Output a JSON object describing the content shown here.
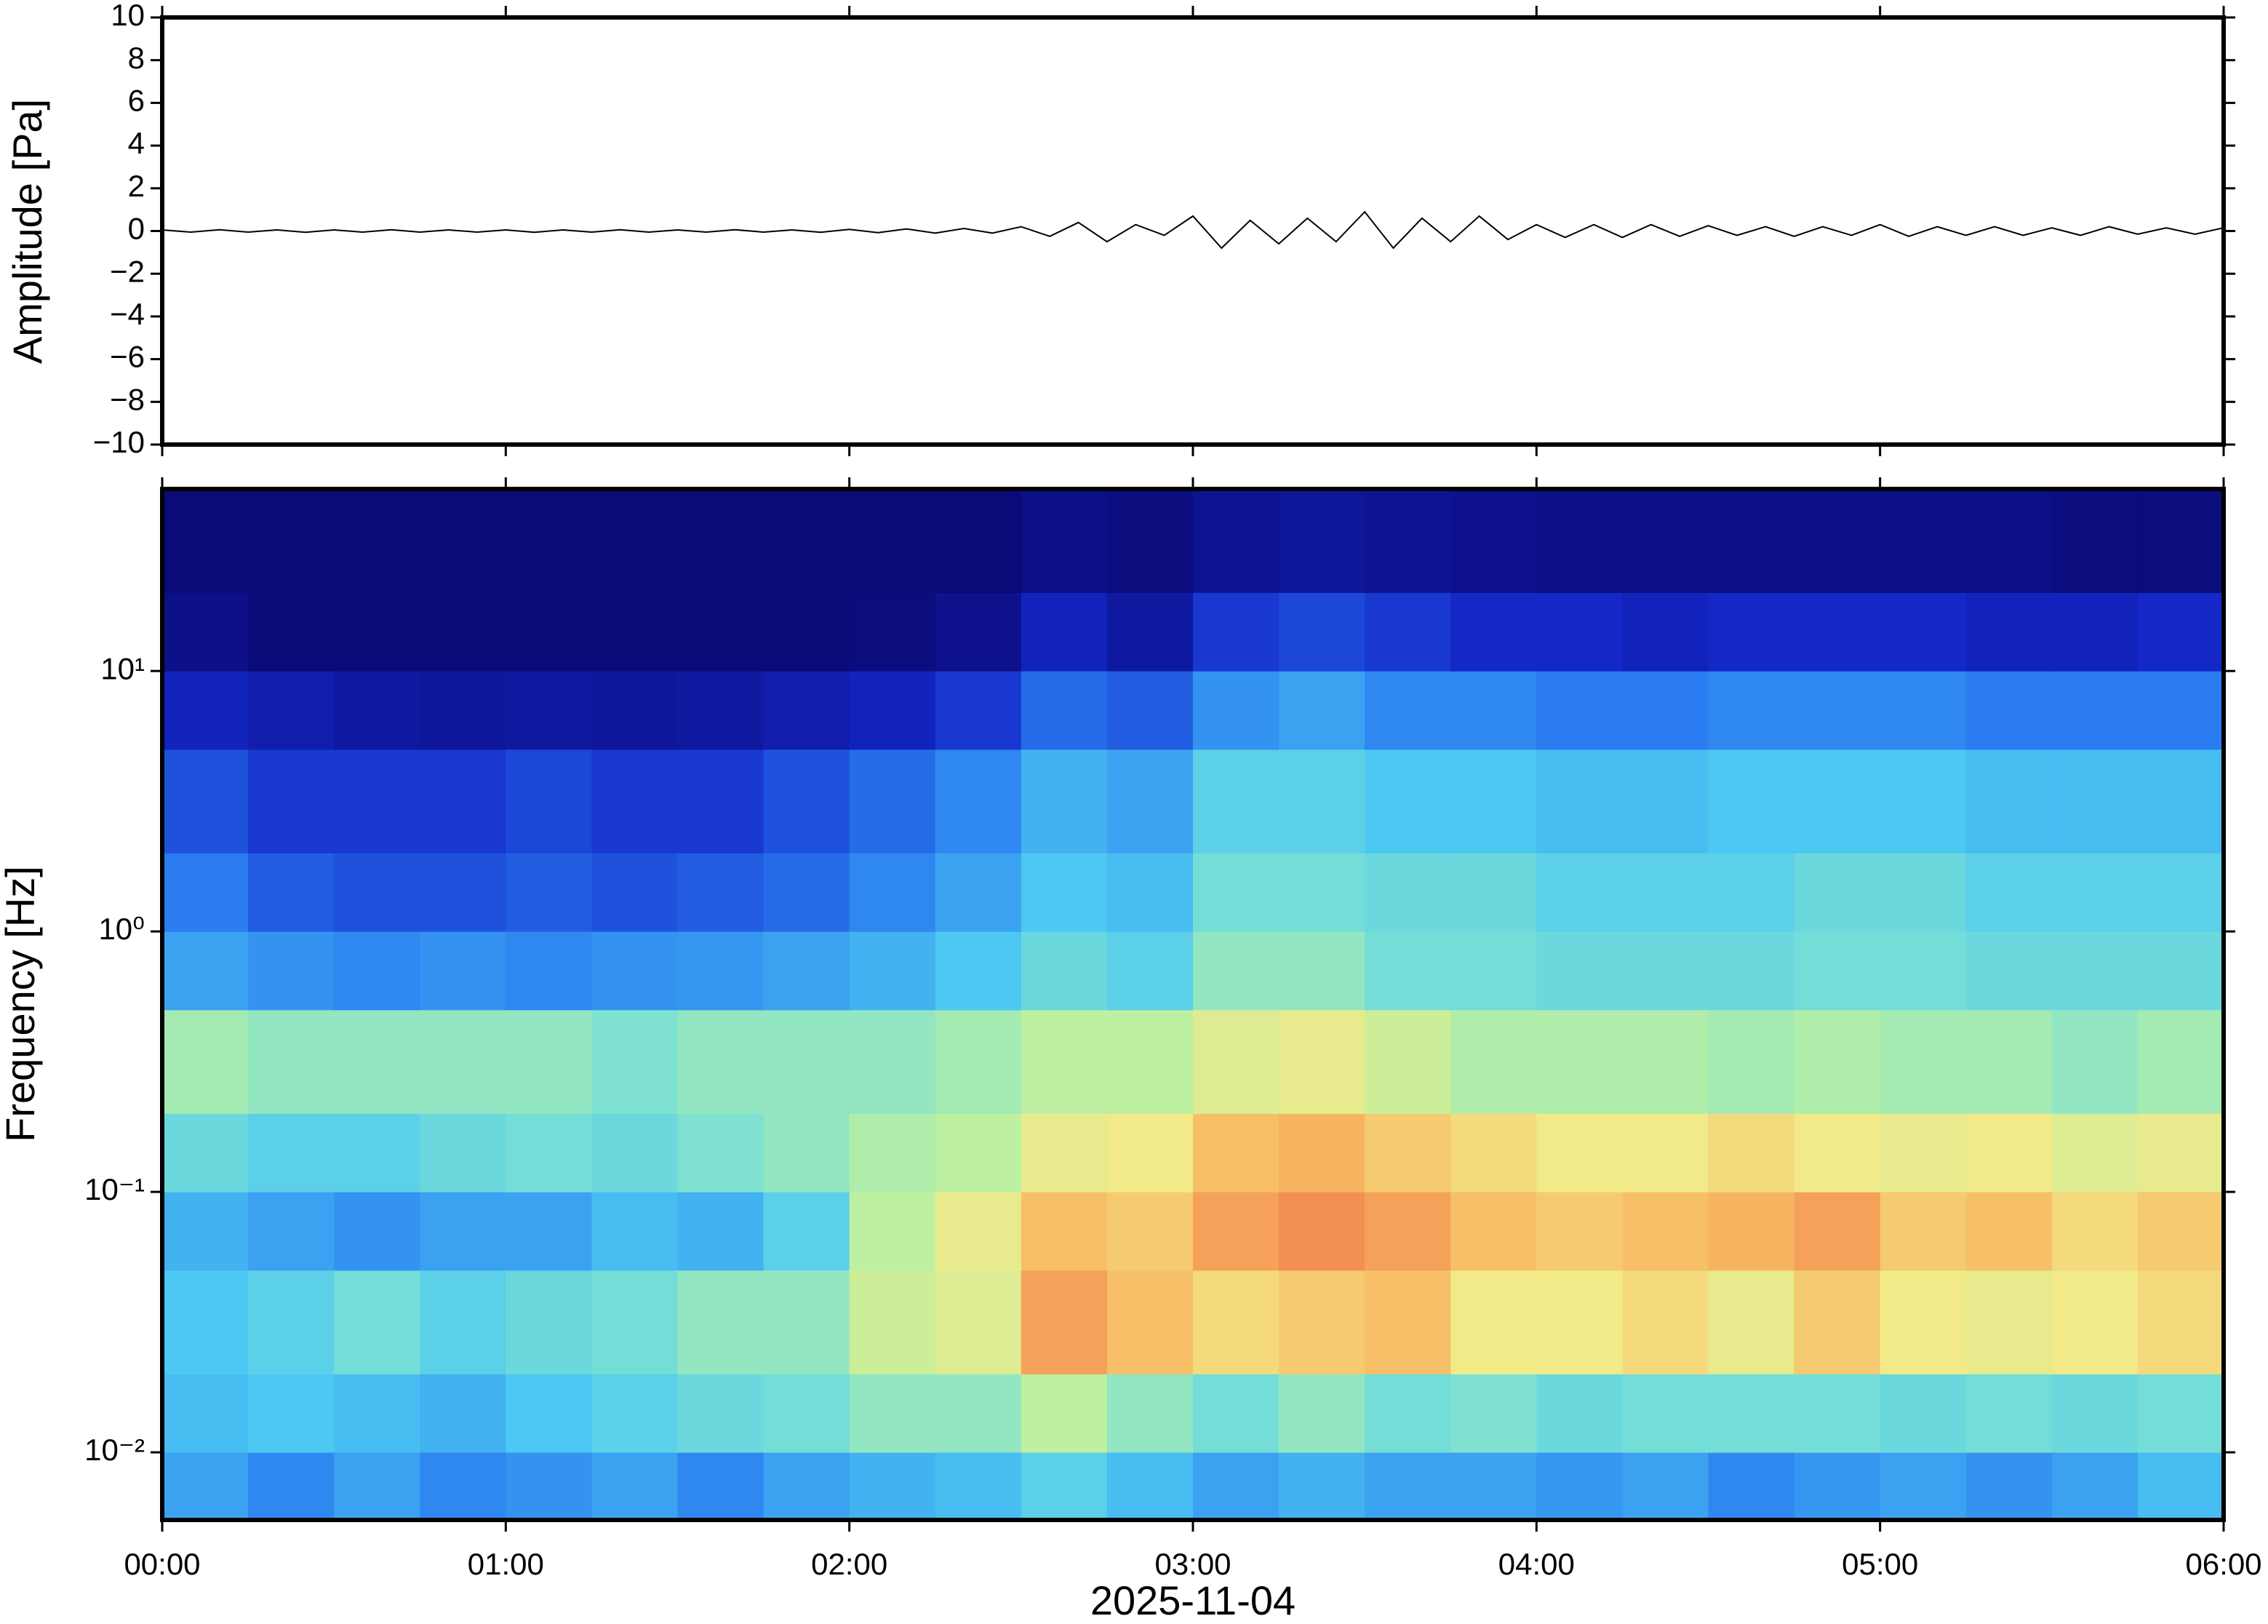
{
  "chart_data": [
    {
      "type": "line",
      "ylabel": "Amplitude [Pa]",
      "x": [
        0,
        5,
        10,
        15,
        20,
        25,
        30,
        35,
        40,
        45,
        50,
        55,
        60,
        65,
        70,
        75,
        80,
        85,
        90,
        95,
        100,
        105,
        110,
        115,
        120,
        125,
        130,
        135,
        140,
        145,
        150,
        155,
        160,
        165,
        170,
        175,
        180,
        185,
        190,
        195,
        200,
        205,
        210,
        215,
        220,
        225,
        230,
        235,
        240,
        245,
        250,
        255,
        260,
        265,
        270,
        275,
        280,
        285,
        290,
        295,
        300,
        305,
        310,
        315,
        320,
        325,
        330,
        335,
        340,
        345,
        350,
        355,
        360
      ],
      "values": [
        0.05,
        -0.05,
        0.06,
        -0.05,
        0.05,
        -0.06,
        0.05,
        -0.05,
        0.06,
        -0.05,
        0.05,
        -0.05,
        0.05,
        -0.06,
        0.05,
        -0.05,
        0.06,
        -0.05,
        0.05,
        -0.05,
        0.06,
        -0.05,
        0.05,
        -0.06,
        0.08,
        -0.08,
        0.1,
        -0.1,
        0.12,
        -0.1,
        0.2,
        -0.25,
        0.4,
        -0.5,
        0.3,
        -0.2,
        0.7,
        -0.8,
        0.5,
        -0.6,
        0.6,
        -0.5,
        0.9,
        -0.8,
        0.6,
        -0.5,
        0.7,
        -0.4,
        0.3,
        -0.3,
        0.3,
        -0.3,
        0.3,
        -0.25,
        0.25,
        -0.2,
        0.2,
        -0.25,
        0.2,
        -0.2,
        0.3,
        -0.25,
        0.2,
        -0.2,
        0.2,
        -0.2,
        0.15,
        -0.2,
        0.2,
        -0.15,
        0.15,
        -0.15,
        0.15
      ],
      "color": "#000000",
      "xlim": [
        0,
        360
      ],
      "xticks": [
        0,
        60,
        120,
        180,
        240,
        300,
        360
      ],
      "ylim": [
        -10,
        10
      ],
      "yticks": [
        {
          "value": -10,
          "label": "−10"
        },
        {
          "value": -8,
          "label": "−8"
        },
        {
          "value": -6,
          "label": "−6"
        },
        {
          "value": -4,
          "label": "−4"
        },
        {
          "value": -2,
          "label": "−2"
        },
        0,
        2,
        4,
        6,
        8,
        10
      ]
    },
    {
      "type": "heatmap",
      "ylabel": "Frequency [Hz]",
      "xlabel": "2025-11-04",
      "yscale": "log",
      "colormap": "jet",
      "xlim": [
        0,
        360
      ],
      "xticks": [
        {
          "value": 0,
          "label": "00:00"
        },
        {
          "value": 60,
          "label": "01:00"
        },
        {
          "value": 120,
          "label": "02:00"
        },
        {
          "value": 180,
          "label": "03:00"
        },
        {
          "value": 240,
          "label": "04:00"
        },
        {
          "value": 300,
          "label": "05:00"
        },
        {
          "value": 360,
          "label": "06:00"
        }
      ],
      "ylim": [
        0.0055,
        50
      ],
      "yticks": [
        {
          "value": 0.01,
          "label": "10⁻²"
        },
        {
          "value": 0.1,
          "label": "10⁻¹"
        },
        {
          "value": 1,
          "label": "10⁰"
        },
        {
          "value": 10,
          "label": "10¹"
        }
      ],
      "xbins": [
        0,
        15,
        30,
        45,
        60,
        75,
        90,
        105,
        120,
        135,
        150,
        165,
        180,
        195,
        210,
        225,
        240,
        255,
        270,
        285,
        300,
        315,
        330,
        345,
        360
      ],
      "ybins": [
        0.0055,
        0.01,
        0.02,
        0.05,
        0.1,
        0.2,
        0.5,
        1,
        2,
        5,
        10,
        20,
        50
      ],
      "z": [
        [
          0.35,
          0.3,
          0.35,
          0.3,
          0.32,
          0.35,
          0.3,
          0.35,
          0.38,
          0.4,
          0.45,
          0.4,
          0.35,
          0.38,
          0.35,
          0.35,
          0.33,
          0.35,
          0.3,
          0.33,
          0.35,
          0.32,
          0.35,
          0.4
        ],
        [
          0.4,
          0.42,
          0.4,
          0.38,
          0.42,
          0.45,
          0.48,
          0.5,
          0.55,
          0.55,
          0.62,
          0.55,
          0.5,
          0.55,
          0.5,
          0.52,
          0.48,
          0.5,
          0.5,
          0.5,
          0.48,
          0.5,
          0.48,
          0.5
        ],
        [
          0.42,
          0.45,
          0.5,
          0.45,
          0.48,
          0.5,
          0.55,
          0.55,
          0.65,
          0.68,
          0.85,
          0.8,
          0.75,
          0.78,
          0.8,
          0.72,
          0.72,
          0.75,
          0.7,
          0.78,
          0.72,
          0.7,
          0.72,
          0.75
        ],
        [
          0.38,
          0.35,
          0.32,
          0.35,
          0.35,
          0.4,
          0.38,
          0.45,
          0.62,
          0.7,
          0.8,
          0.78,
          0.85,
          0.88,
          0.85,
          0.8,
          0.78,
          0.8,
          0.82,
          0.85,
          0.78,
          0.8,
          0.75,
          0.78
        ],
        [
          0.48,
          0.45,
          0.45,
          0.48,
          0.5,
          0.48,
          0.52,
          0.55,
          0.6,
          0.62,
          0.7,
          0.72,
          0.8,
          0.82,
          0.78,
          0.75,
          0.72,
          0.72,
          0.75,
          0.72,
          0.7,
          0.72,
          0.68,
          0.7
        ],
        [
          0.58,
          0.55,
          0.55,
          0.55,
          0.55,
          0.52,
          0.55,
          0.55,
          0.55,
          0.58,
          0.62,
          0.62,
          0.68,
          0.7,
          0.65,
          0.6,
          0.6,
          0.6,
          0.58,
          0.6,
          0.58,
          0.58,
          0.55,
          0.58
        ],
        [
          0.35,
          0.32,
          0.3,
          0.32,
          0.3,
          0.32,
          0.33,
          0.35,
          0.38,
          0.42,
          0.48,
          0.45,
          0.55,
          0.55,
          0.5,
          0.5,
          0.48,
          0.48,
          0.48,
          0.5,
          0.5,
          0.48,
          0.48,
          0.48
        ],
        [
          0.28,
          0.22,
          0.2,
          0.2,
          0.22,
          0.2,
          0.22,
          0.25,
          0.3,
          0.35,
          0.42,
          0.4,
          0.5,
          0.5,
          0.48,
          0.48,
          0.45,
          0.45,
          0.45,
          0.48,
          0.48,
          0.45,
          0.45,
          0.45
        ],
        [
          0.2,
          0.15,
          0.15,
          0.15,
          0.18,
          0.15,
          0.15,
          0.2,
          0.25,
          0.3,
          0.38,
          0.35,
          0.45,
          0.45,
          0.42,
          0.42,
          0.4,
          0.4,
          0.42,
          0.42,
          0.42,
          0.4,
          0.4,
          0.4
        ],
        [
          0.1,
          0.08,
          0.06,
          0.05,
          0.06,
          0.05,
          0.06,
          0.08,
          0.1,
          0.15,
          0.25,
          0.22,
          0.32,
          0.35,
          0.3,
          0.3,
          0.28,
          0.28,
          0.3,
          0.3,
          0.3,
          0.28,
          0.28,
          0.28
        ],
        [
          0.02,
          0,
          0,
          0,
          0,
          0,
          0,
          0,
          0.01,
          0.03,
          0.1,
          0.06,
          0.15,
          0.18,
          0.15,
          0.12,
          0.12,
          0.1,
          0.12,
          0.12,
          0.12,
          0.1,
          0.1,
          0.12
        ],
        [
          0,
          0,
          0,
          0,
          0,
          0,
          0,
          0,
          0,
          0,
          0.02,
          0.01,
          0.04,
          0.05,
          0.04,
          0.03,
          0.02,
          0.02,
          0.02,
          0.02,
          0.02,
          0.02,
          0.01,
          0.01
        ]
      ]
    }
  ]
}
